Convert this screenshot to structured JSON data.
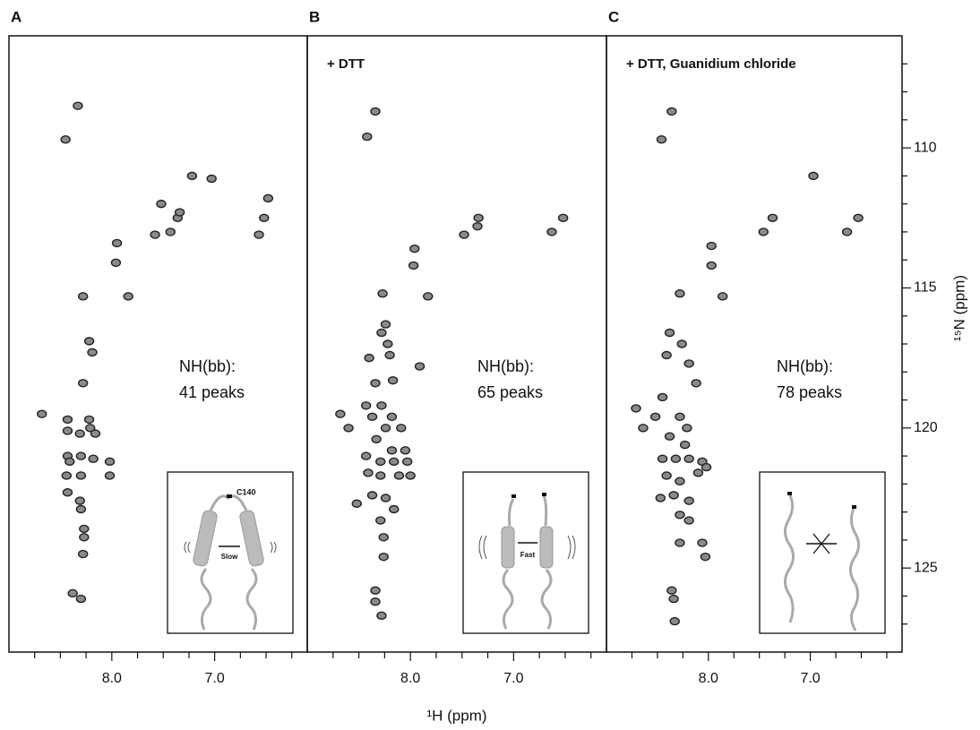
{
  "chart_data": [
    {
      "type": "scatter",
      "title": "A",
      "annotation": [
        "NH(bb):",
        "41 peaks"
      ],
      "inset_labels": [
        "C140",
        "Slow"
      ],
      "xlim": [
        9.0,
        6.1
      ],
      "xticks": [
        {
          "value": 8,
          "label": "8.0"
        },
        {
          "value": 7,
          "label": "7.0"
        }
      ],
      "x_minor_ticks": [
        8.75,
        8.5,
        8.25,
        7.75,
        7.5,
        7.25,
        6.75,
        6.5,
        6.25
      ],
      "ylim": [
        106,
        128
      ],
      "x": [
        8.33,
        8.45,
        7.95,
        7.96,
        7.84,
        8.28,
        8.22,
        8.19,
        8.28,
        8.68,
        8.43,
        8.22,
        8.21,
        8.43,
        8.31,
        8.16,
        8.43,
        8.3,
        8.41,
        8.18,
        8.02,
        8.44,
        8.3,
        8.02,
        8.43,
        8.31,
        8.3,
        8.27,
        8.27,
        8.28,
        8.38,
        8.3,
        7.58,
        7.43,
        7.36,
        7.34,
        7.22,
        7.03,
        6.57,
        6.52,
        6.48,
        7.52
      ],
      "y": [
        108.5,
        109.7,
        113.4,
        114.1,
        115.3,
        115.3,
        116.9,
        117.3,
        118.4,
        119.5,
        119.7,
        119.7,
        120.0,
        120.1,
        120.2,
        120.2,
        121.0,
        121.0,
        121.2,
        121.1,
        121.2,
        121.7,
        121.7,
        121.7,
        122.3,
        122.6,
        122.9,
        123.6,
        123.9,
        124.5,
        125.9,
        126.1,
        113.1,
        113.0,
        112.5,
        112.3,
        111.0,
        111.1,
        113.1,
        112.5,
        111.8,
        112.0
      ]
    },
    {
      "type": "scatter",
      "title": "B",
      "subtitle": "+ DTT",
      "annotation": [
        "NH(bb):",
        "65 peaks"
      ],
      "inset_labels": [
        "Fast"
      ],
      "xlabel": "¹H (ppm)",
      "xlim": [
        9.0,
        6.1
      ],
      "xticks": [
        {
          "value": 8,
          "label": "8.0"
        },
        {
          "value": 7,
          "label": "7.0"
        }
      ],
      "x_minor_ticks": [
        8.75,
        8.5,
        8.25,
        7.75,
        7.5,
        7.25,
        6.75,
        6.5,
        6.25
      ],
      "ylim": [
        106,
        128
      ],
      "x": [
        8.34,
        8.42,
        7.96,
        7.97,
        7.83,
        8.27,
        8.24,
        8.28,
        8.22,
        8.2,
        8.4,
        8.34,
        8.17,
        7.91,
        8.68,
        8.6,
        8.43,
        8.28,
        8.37,
        8.18,
        8.24,
        8.09,
        8.33,
        8.18,
        8.05,
        8.43,
        8.29,
        8.16,
        8.03,
        8.41,
        8.29,
        8.11,
        8.0,
        8.52,
        8.37,
        8.24,
        8.16,
        8.29,
        8.26,
        8.26,
        8.34,
        8.34,
        8.28,
        7.48,
        7.34,
        7.35,
        6.63,
        6.52
      ],
      "y": [
        108.7,
        109.6,
        113.6,
        114.2,
        115.3,
        115.2,
        116.3,
        116.6,
        117.0,
        117.4,
        117.5,
        118.4,
        118.3,
        117.8,
        119.5,
        120.0,
        119.2,
        119.2,
        119.6,
        119.6,
        120.0,
        120.0,
        120.4,
        120.8,
        120.8,
        121.0,
        121.2,
        121.2,
        121.2,
        121.6,
        121.7,
        121.7,
        121.7,
        122.7,
        122.4,
        122.5,
        122.9,
        123.3,
        123.9,
        124.6,
        125.8,
        126.2,
        126.7,
        113.1,
        112.5,
        112.8,
        113.0,
        112.5
      ]
    },
    {
      "type": "scatter",
      "title": "C",
      "subtitle": "+ DTT, Guanidium chloride",
      "annotation": [
        "NH(bb):",
        "78 peaks"
      ],
      "ylabel": "¹⁵N (ppm)",
      "xlim": [
        9.0,
        6.1
      ],
      "xticks": [
        {
          "value": 8,
          "label": "8.0"
        },
        {
          "value": 7,
          "label": "7.0"
        }
      ],
      "x_minor_ticks": [
        8.75,
        8.5,
        8.25,
        7.75,
        7.5,
        7.25,
        6.75,
        6.5,
        6.25
      ],
      "ylim": [
        106,
        128
      ],
      "yticks": [
        110,
        115,
        120,
        125
      ],
      "y_minor_ticks": [
        107,
        108,
        109,
        111,
        112,
        113,
        114,
        116,
        117,
        118,
        119,
        121,
        122,
        123,
        124,
        126,
        127
      ],
      "x": [
        8.36,
        8.46,
        7.97,
        7.97,
        7.86,
        8.28,
        8.38,
        8.26,
        8.41,
        8.19,
        8.12,
        8.71,
        8.64,
        8.45,
        8.52,
        8.28,
        8.21,
        8.38,
        8.23,
        8.45,
        8.32,
        8.19,
        8.06,
        8.41,
        8.28,
        8.1,
        8.02,
        8.47,
        8.34,
        8.19,
        8.28,
        8.19,
        8.28,
        8.06,
        8.03,
        8.36,
        8.34,
        8.33,
        7.46,
        7.37,
        6.97,
        6.64,
        6.53
      ],
      "y": [
        108.7,
        109.7,
        113.5,
        114.2,
        115.3,
        115.2,
        116.6,
        117.0,
        117.4,
        117.7,
        118.4,
        119.3,
        120.0,
        118.9,
        119.6,
        119.6,
        120.0,
        120.3,
        120.6,
        121.1,
        121.1,
        121.1,
        121.2,
        121.7,
        121.9,
        121.6,
        121.4,
        122.5,
        122.4,
        122.6,
        123.1,
        123.3,
        124.1,
        124.1,
        124.6,
        125.8,
        126.1,
        126.9,
        113.0,
        112.5,
        111.0,
        113.0,
        112.5
      ]
    }
  ]
}
